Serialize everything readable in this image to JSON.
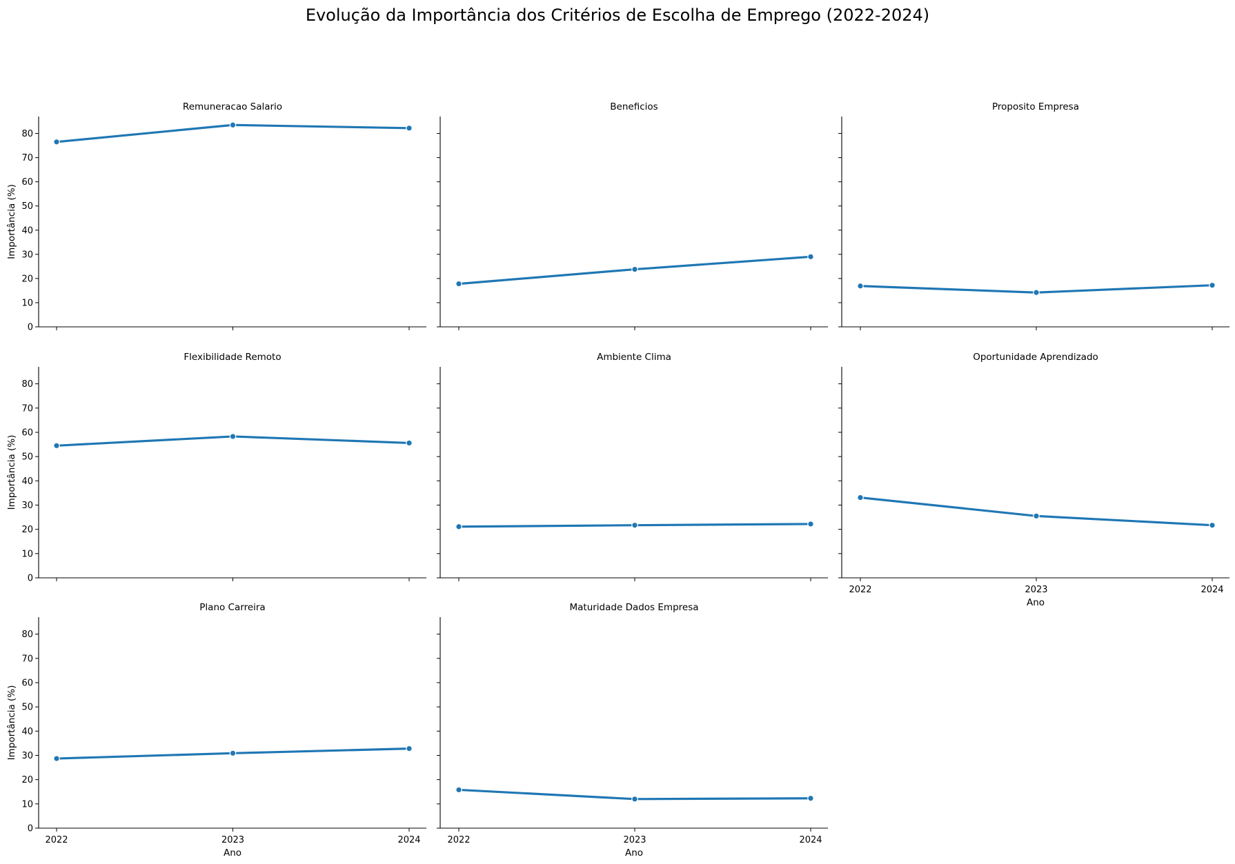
{
  "chart_data": {
    "type": "line",
    "title": "Evolução da Importância dos Critérios de Escolha de Emprego (2022-2024)",
    "xlabel": "Ano",
    "ylabel": "Importância (%)",
    "x": [
      "2022",
      "2023",
      "2024"
    ],
    "y_ticks": [
      0,
      10,
      20,
      30,
      40,
      50,
      60,
      70,
      80
    ],
    "ylim": [
      0,
      87
    ],
    "line_color": "#1f77b4",
    "grid": false,
    "panels": [
      {
        "title": "Remuneracao Salario",
        "values": [
          76.5,
          83.5,
          82.2
        ]
      },
      {
        "title": "Beneficios",
        "values": [
          17.8,
          23.8,
          29.0
        ]
      },
      {
        "title": "Proposito Empresa",
        "values": [
          16.9,
          14.2,
          17.2
        ]
      },
      {
        "title": "Flexibilidade Remoto",
        "values": [
          54.5,
          58.3,
          55.6
        ]
      },
      {
        "title": "Ambiente Clima",
        "values": [
          21.1,
          21.7,
          22.2
        ]
      },
      {
        "title": "Oportunidade Aprendizado",
        "values": [
          33.1,
          25.5,
          21.7
        ]
      },
      {
        "title": "Plano Carreira",
        "values": [
          28.7,
          30.9,
          32.8
        ]
      },
      {
        "title": "Maturidade Dados Empresa",
        "values": [
          15.8,
          12.0,
          12.3
        ]
      }
    ]
  }
}
